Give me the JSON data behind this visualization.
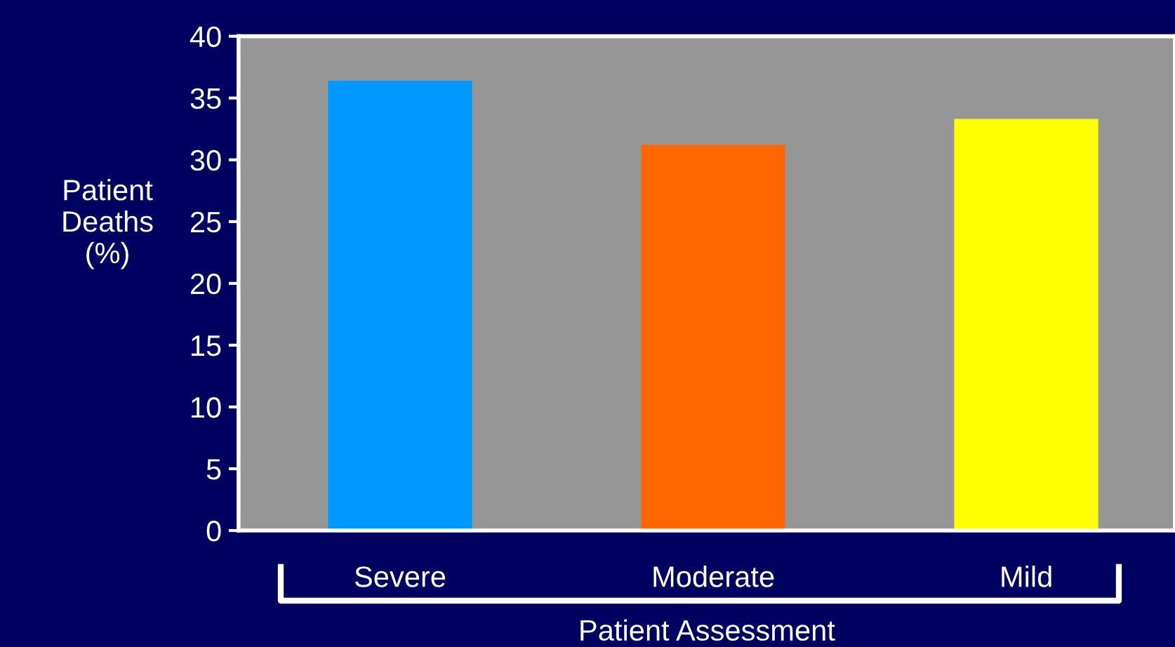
{
  "chart_data": {
    "type": "bar",
    "xlabel": "Patient Assessment",
    "ylabel": "Patient\nDeaths\n(%)",
    "categories": [
      "Severe",
      "Moderate",
      "Mild"
    ],
    "values": [
      36.4,
      31.2,
      33.3
    ],
    "colors": [
      "#0099ff",
      "#ff6600",
      "#ffff00"
    ],
    "ylim": [
      0,
      40
    ],
    "yticks": [
      0,
      5,
      10,
      15,
      20,
      25,
      30,
      35,
      40
    ],
    "grid": false,
    "legend": false
  }
}
